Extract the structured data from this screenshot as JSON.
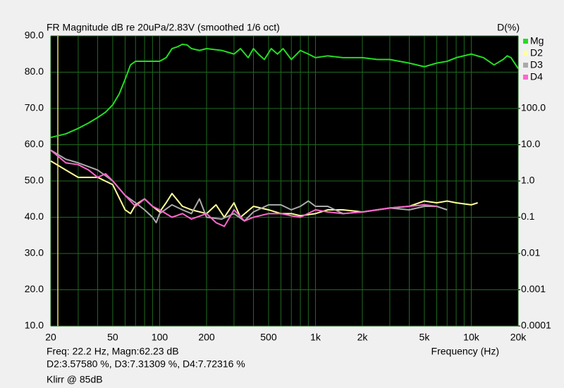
{
  "chart_data": {
    "type": "line",
    "title": "FR Magnitude dB re 20uPa/2.83V (smoothed 1/6 oct)",
    "y2_label": "D(%)",
    "x_label": "Frequency (Hz)",
    "log_x": true,
    "log_y2": true,
    "grid": true,
    "legend": "top-right",
    "xlim": [
      20,
      20000
    ],
    "xticks": [
      20,
      50,
      100,
      200,
      500,
      {
        "value": 1000,
        "label": "1k"
      },
      {
        "value": 2000,
        "label": "2k"
      },
      {
        "value": 5000,
        "label": "5k"
      },
      {
        "value": 10000,
        "label": "10k"
      },
      {
        "value": 20000,
        "label": "20k"
      }
    ],
    "x_minor_ticks": [
      30,
      40,
      60,
      70,
      80,
      90,
      300,
      400,
      600,
      700,
      800,
      900,
      3000,
      4000,
      6000,
      7000,
      8000,
      9000
    ],
    "ylim": [
      10,
      90
    ],
    "yticks": [
      {
        "value": 10,
        "label": "10.0"
      },
      {
        "value": 20,
        "label": "20.0"
      },
      {
        "value": 30,
        "label": "30.0"
      },
      {
        "value": 40,
        "label": "40.0"
      },
      {
        "value": 50,
        "label": "50.0"
      },
      {
        "value": 60,
        "label": "60.0"
      },
      {
        "value": 70,
        "label": "70.0"
      },
      {
        "value": 80,
        "label": "80.0"
      },
      {
        "value": 90,
        "label": "90.0"
      }
    ],
    "y2lim": [
      0.0001,
      10000
    ],
    "y2ticks": [
      0.0001,
      0.001,
      0.01,
      0.1,
      {
        "value": 1,
        "label": "1.0"
      },
      {
        "value": 10,
        "label": "10.0"
      },
      {
        "value": 100,
        "label": "100.0"
      }
    ],
    "cursor_x": 22.2,
    "cursor_color": "#e8e060",
    "readout": [
      "Freq: 22.2 Hz, Magn:62.23 dB",
      "D2:3.57580 %, D3:7.31309 %, D4:7.72316 %",
      "Klirr @ 85dB"
    ],
    "series": [
      {
        "name": "Mg",
        "color": "#22dd22",
        "axis": "y",
        "x": [
          20,
          25,
          30,
          35,
          40,
          45,
          50,
          55,
          60,
          65,
          70,
          80,
          90,
          100,
          110,
          120,
          130,
          140,
          150,
          160,
          180,
          200,
          250,
          300,
          330,
          370,
          400,
          430,
          470,
          520,
          570,
          620,
          700,
          800,
          900,
          1000,
          1200,
          1500,
          2000,
          2500,
          3000,
          4000,
          5000,
          6000,
          7000,
          8000,
          10000,
          12000,
          14000,
          16000,
          17000,
          18000,
          20000
        ],
        "values": [
          62,
          63,
          64.5,
          66,
          67.5,
          69,
          71,
          74,
          78,
          82,
          83,
          83,
          83,
          83,
          84,
          86.5,
          87,
          87.7,
          87.5,
          86.5,
          86,
          86.5,
          86,
          85,
          86.5,
          84,
          86.5,
          85,
          83.5,
          86.5,
          85,
          86.5,
          83.5,
          86,
          85,
          84,
          84.5,
          84,
          84,
          83.5,
          83.5,
          82.5,
          81.5,
          82.5,
          83,
          84,
          85,
          84,
          82,
          83.5,
          84.5,
          84,
          81
        ]
      },
      {
        "name": "D2",
        "color": "#ffff99",
        "axis": "y2",
        "x": [
          20,
          25,
          30,
          40,
          50,
          60,
          65,
          70,
          80,
          90,
          100,
          110,
          120,
          140,
          160,
          200,
          230,
          260,
          300,
          330,
          400,
          500,
          600,
          700,
          800,
          1000,
          1200,
          1500,
          2000,
          2500,
          3000,
          4000,
          5000,
          6000,
          7000,
          8000,
          10000,
          11000
        ],
        "values": [
          3.55,
          2.0,
          1.26,
          1.26,
          0.79,
          0.16,
          0.126,
          0.22,
          0.32,
          0.2,
          0.14,
          0.25,
          0.45,
          0.2,
          0.16,
          0.126,
          0.22,
          0.1,
          0.25,
          0.1,
          0.2,
          0.16,
          0.126,
          0.126,
          0.11,
          0.126,
          0.16,
          0.16,
          0.14,
          0.16,
          0.18,
          0.2,
          0.28,
          0.25,
          0.28,
          0.25,
          0.22,
          0.25
        ]
      },
      {
        "name": "D3",
        "color": "#aaaaaa",
        "axis": "y2",
        "x": [
          20,
          25,
          30,
          40,
          50,
          60,
          70,
          80,
          90,
          95,
          100,
          120,
          140,
          160,
          180,
          200,
          250,
          300,
          350,
          400,
          500,
          600,
          700,
          800,
          900,
          1000,
          1200,
          1500,
          2000,
          3000,
          4000,
          5000,
          6000,
          7000
        ],
        "values": [
          7.08,
          3.98,
          3.16,
          2.0,
          1.0,
          0.4,
          0.25,
          0.16,
          0.1,
          0.071,
          0.126,
          0.22,
          0.16,
          0.126,
          0.32,
          0.1,
          0.089,
          0.126,
          0.079,
          0.14,
          0.22,
          0.22,
          0.16,
          0.2,
          0.28,
          0.2,
          0.2,
          0.126,
          0.14,
          0.18,
          0.16,
          0.2,
          0.2,
          0.16
        ]
      },
      {
        "name": "D4",
        "color": "#ff66cc",
        "axis": "y2",
        "x": [
          20,
          25,
          30,
          35,
          40,
          45,
          50,
          60,
          70,
          80,
          90,
          100,
          120,
          140,
          160,
          200,
          230,
          260,
          300,
          350,
          400,
          500,
          600,
          700,
          800,
          1000,
          1200,
          1500,
          2000,
          3000,
          4000,
          5000,
          6000
        ],
        "values": [
          7.08,
          3.16,
          2.82,
          2.0,
          1.26,
          1.58,
          1.0,
          0.4,
          0.2,
          0.32,
          0.2,
          0.16,
          0.1,
          0.126,
          0.089,
          0.126,
          0.071,
          0.056,
          0.16,
          0.079,
          0.1,
          0.126,
          0.126,
          0.11,
          0.1,
          0.16,
          0.14,
          0.126,
          0.14,
          0.18,
          0.2,
          0.22,
          0.2
        ]
      }
    ]
  }
}
